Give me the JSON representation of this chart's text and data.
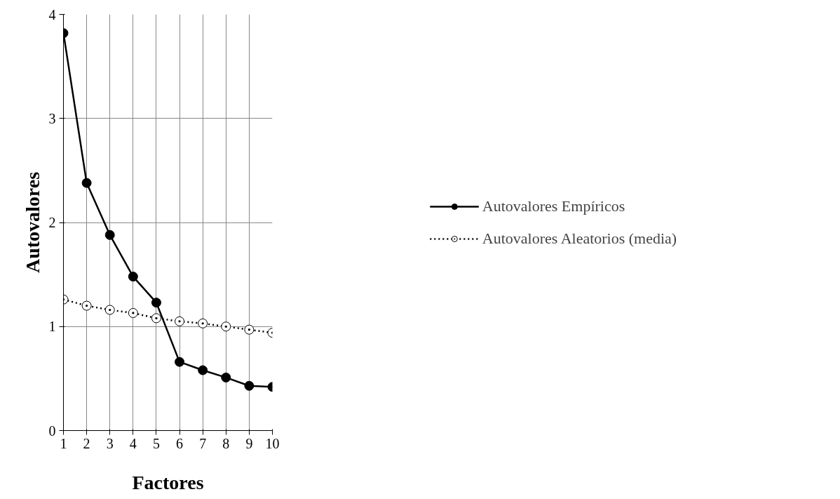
{
  "chart_data": {
    "type": "line",
    "xlabel": "Factores",
    "ylabel": "Autovalores",
    "x": [
      1,
      2,
      3,
      4,
      5,
      6,
      7,
      8,
      9,
      10
    ],
    "xlim": [
      1,
      10
    ],
    "xticks": [
      1,
      2,
      3,
      4,
      5,
      6,
      7,
      8,
      9,
      10
    ],
    "ylim": [
      0,
      4
    ],
    "yticks": [
      0,
      1,
      2,
      3,
      4
    ],
    "grid": true,
    "legend": "right",
    "series": [
      {
        "name": "Autovalores Empíricos",
        "color": "#000000",
        "marker": "circle",
        "line_style": "solid",
        "values": [
          3.82,
          2.38,
          1.88,
          1.48,
          1.23,
          0.66,
          0.58,
          0.51,
          0.43,
          0.42
        ]
      },
      {
        "name": "Autovalores Aleatorios (media)",
        "color": "#000000",
        "marker": "circle_open",
        "line_style": "dotted",
        "values": [
          1.26,
          1.2,
          1.16,
          1.13,
          1.08,
          1.05,
          1.03,
          1.0,
          0.97,
          0.94
        ]
      }
    ]
  }
}
